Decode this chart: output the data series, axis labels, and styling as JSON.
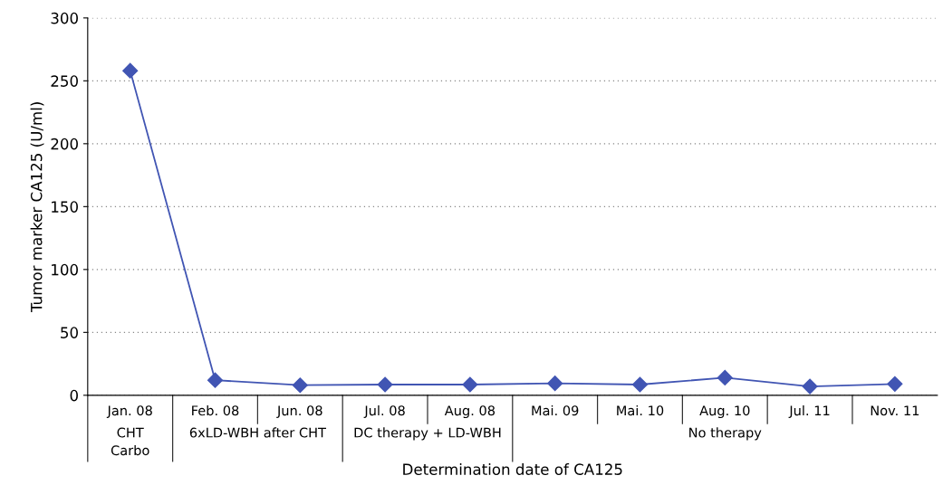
{
  "chart_data": {
    "type": "line",
    "xlabel": "Determination date of CA125",
    "ylabel": "Tumor marker CA125 (U/ml)",
    "categories": [
      "Jan. 08",
      "Feb. 08",
      "Jun. 08",
      "Jul. 08",
      "Aug. 08",
      "Mai. 09",
      "Mai. 10",
      "Aug. 10",
      "Jul. 11",
      "Nov. 11"
    ],
    "series": [
      {
        "color": "#4155b3",
        "values": [
          258,
          12,
          8,
          8.5,
          8.5,
          9.5,
          8.5,
          14,
          7,
          9
        ]
      }
    ],
    "ylim": [
      0,
      300
    ],
    "yticks": [
      0,
      50,
      100,
      150,
      200,
      250,
      300
    ],
    "grid": "y",
    "marker": "diamond",
    "line_style": "solid",
    "legend": false,
    "annotations": [
      "CHT\nCarbo",
      "6xLD-WBH after CHT",
      "DC therapy + LD-WBH",
      "No therapy"
    ]
  }
}
